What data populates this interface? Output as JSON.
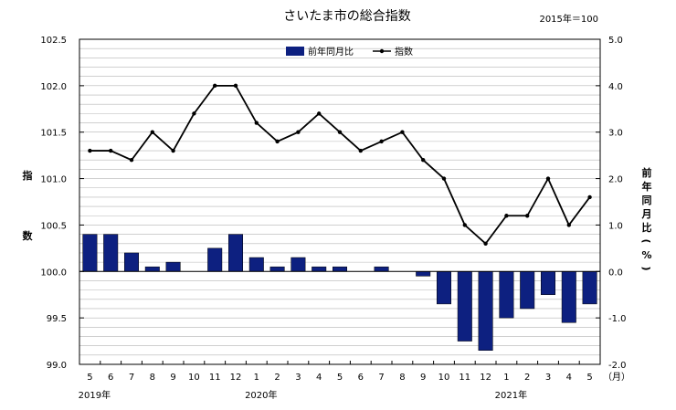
{
  "chart_data": {
    "type": "bar+line",
    "title": "さいたま市の総合指数",
    "base_note": "2015年＝100",
    "months": [
      "5",
      "6",
      "7",
      "8",
      "9",
      "10",
      "11",
      "12",
      "1",
      "2",
      "3",
      "4",
      "5",
      "6",
      "7",
      "8",
      "9",
      "10",
      "11",
      "12",
      "1",
      "2",
      "3",
      "4",
      "5"
    ],
    "month_unit": "（月）",
    "year_labels": [
      {
        "label": "2019年",
        "index": 0
      },
      {
        "label": "2020年",
        "index": 8
      },
      {
        "label": "2021年",
        "index": 20
      }
    ],
    "left_axis": {
      "label_chars": [
        "指",
        "数"
      ],
      "ylim": [
        99.0,
        102.5
      ],
      "ticks": [
        "99.0",
        "99.5",
        "100.0",
        "100.5",
        "101.0",
        "101.5",
        "102.0",
        "102.5"
      ]
    },
    "right_axis": {
      "label_chars": [
        "前",
        "年",
        "同",
        "月",
        "比",
        "(",
        "%",
        ")"
      ],
      "ylim": [
        -2.0,
        5.0
      ],
      "ticks": [
        "-2.0",
        "-1.0",
        "0.0",
        "1.0",
        "2.0",
        "3.0",
        "4.0",
        "5.0"
      ]
    },
    "series": [
      {
        "name": "前年同月比",
        "kind": "bar",
        "axis": "right",
        "color": "#0d2080",
        "values": [
          0.8,
          0.8,
          0.4,
          0.1,
          0.2,
          null,
          0.5,
          0.8,
          0.3,
          0.1,
          0.3,
          0.1,
          0.1,
          null,
          0.1,
          null,
          -0.1,
          -0.7,
          -1.5,
          -1.7,
          -1.0,
          -0.8,
          -0.5,
          -1.1,
          -0.7
        ]
      },
      {
        "name": "指数",
        "kind": "line",
        "axis": "left",
        "color": "#000000",
        "values": [
          101.3,
          101.3,
          101.2,
          101.5,
          101.3,
          101.7,
          102.0,
          102.0,
          101.6,
          101.4,
          101.5,
          101.7,
          101.5,
          101.3,
          101.4,
          101.5,
          101.2,
          101.0,
          100.5,
          100.3,
          100.6,
          100.6,
          101.0,
          100.5,
          100.8
        ]
      }
    ]
  }
}
